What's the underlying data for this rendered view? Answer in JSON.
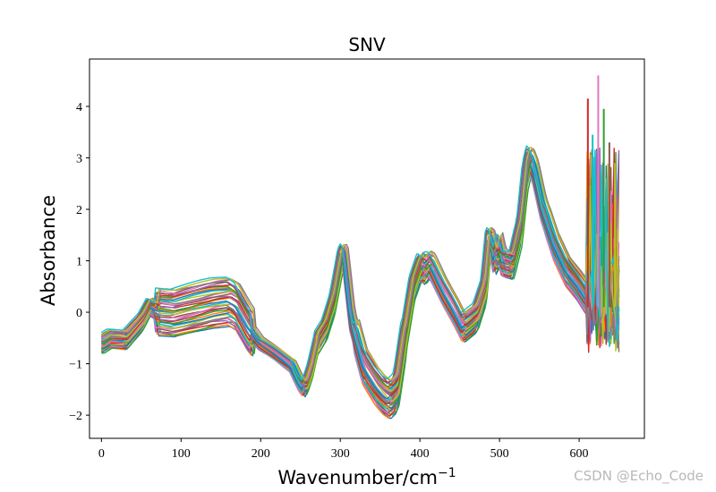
{
  "chart_data": {
    "type": "line",
    "title": "SNV",
    "xlabel": "Wavenumber/cm",
    "xlabel_superscript": "−1",
    "ylabel": "Absorbance",
    "xlim": [
      -15,
      682
    ],
    "ylim": [
      -2.45,
      4.92
    ],
    "x_ticks": [
      0,
      100,
      200,
      300,
      400,
      500,
      600
    ],
    "x_tick_labels": [
      "0",
      "100",
      "200",
      "300",
      "400",
      "500",
      "600"
    ],
    "y_ticks": [
      -2,
      -1,
      0,
      1,
      2,
      3,
      4
    ],
    "y_tick_labels": [
      "−2",
      "−1",
      "0",
      "1",
      "2",
      "3",
      "4"
    ],
    "grid": false,
    "legend": "none",
    "series_count": 40,
    "series_colors": [
      "#1f77b4",
      "#ff7f0e",
      "#2ca02c",
      "#d62728",
      "#9467bd",
      "#8c564b",
      "#e377c2",
      "#7f7f7f",
      "#bcbd22",
      "#17becf"
    ],
    "mean_spectrum": {
      "x": [
        0,
        10,
        30,
        50,
        60,
        70,
        90,
        120,
        140,
        160,
        170,
        185,
        200,
        220,
        240,
        250,
        255,
        262,
        270,
        280,
        290,
        300,
        303,
        306,
        315,
        330,
        345,
        355,
        362,
        370,
        380,
        390,
        400,
        405,
        410,
        415,
        430,
        445,
        455,
        470,
        480,
        486,
        490,
        495,
        500,
        505,
        515,
        525,
        532,
        537,
        540,
        545,
        555,
        570,
        585,
        600,
        610,
        620,
        630,
        640,
        650
      ],
      "y": [
        -0.62,
        -0.52,
        -0.54,
        -0.18,
        0.12,
        0.02,
        -0.02,
        0.1,
        0.18,
        0.22,
        0.12,
        -0.3,
        -0.62,
        -0.82,
        -1.05,
        -1.38,
        -1.48,
        -1.15,
        -0.6,
        -0.35,
        0.15,
        1.0,
        1.12,
        1.05,
        -0.2,
        -1.05,
        -1.42,
        -1.6,
        -1.68,
        -1.55,
        -0.5,
        0.45,
        0.9,
        0.8,
        0.92,
        0.88,
        0.4,
        0.0,
        -0.3,
        -0.1,
        0.38,
        1.4,
        1.35,
        1.0,
        1.3,
        0.95,
        0.9,
        1.55,
        2.6,
        2.95,
        2.9,
        2.7,
        2.0,
        1.3,
        0.8,
        0.5,
        0.25,
        0.1,
        0.2,
        0.1,
        0.05
      ]
    },
    "noise_region": {
      "x_start": 610,
      "x_end": 650,
      "peaks": [
        {
          "x": 611,
          "y": 4.15
        },
        {
          "x": 624,
          "y": 4.6
        },
        {
          "x": 617,
          "y": 3.45
        },
        {
          "x": 631,
          "y": 3.95
        },
        {
          "x": 638,
          "y": 3.3
        },
        {
          "x": 645,
          "y": 2.9
        }
      ]
    }
  },
  "watermark": "CSDN @Echo_Code"
}
